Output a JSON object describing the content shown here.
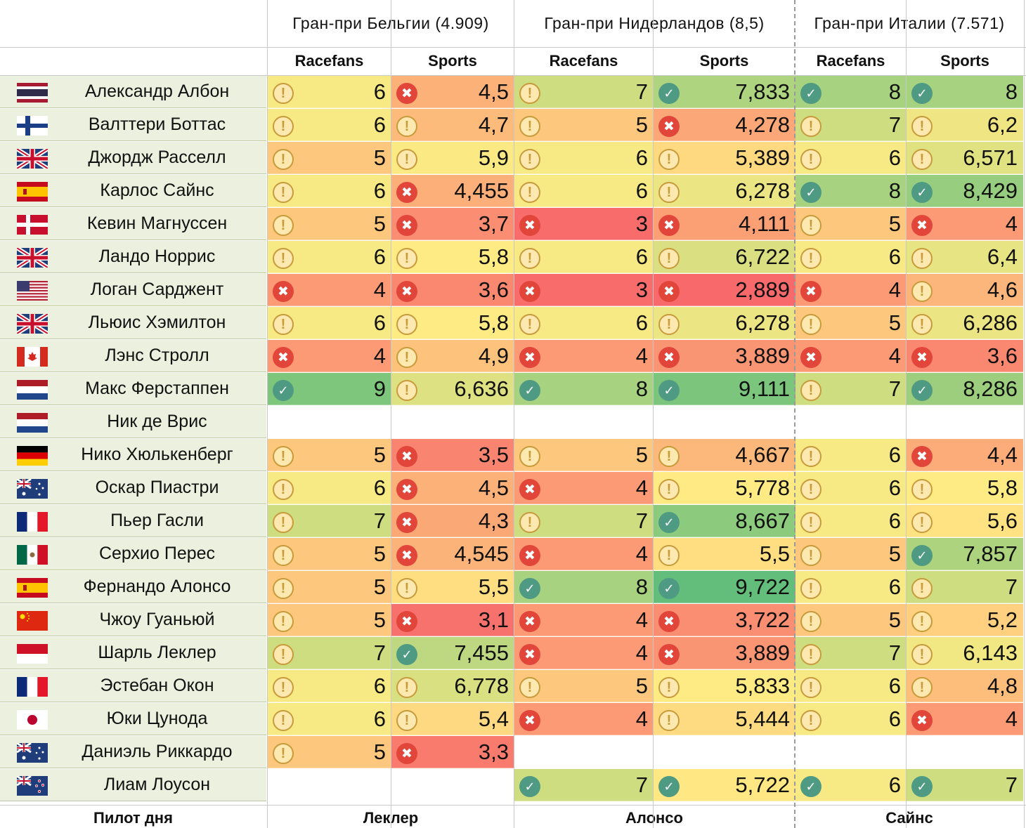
{
  "header": {
    "races": [
      {
        "title": "Гран-при Бельгии (4.909)",
        "title_plain": "Гран-при Бельгии (",
        "title_num": "4.909",
        "title_end": ")"
      },
      {
        "title": "Гран-при Нидерландов (8,5)",
        "title_plain": "Гран-при Нидерландов (",
        "title_num": "8,5",
        "title_end": ")"
      },
      {
        "title": "Гран-при Италии (7.571)",
        "title_plain": "Гран-при Италии (",
        "title_num": "7.571",
        "title_end": ")"
      }
    ],
    "sources": [
      "Racefans",
      "Sports",
      "Racefans",
      "Sports",
      "Racefans",
      "Sports"
    ]
  },
  "colors": {
    "name_bg": "#ebf1de",
    "scale_low": "#f8696b",
    "scale_mid": "#ffeb84",
    "scale_high": "#63be7b",
    "icon_good": "#4f9a83",
    "icon_bad": "#e2453a",
    "icon_warn": "#c79b3b"
  },
  "icons": {
    "good": "check-circle-icon",
    "warn": "exclamation-circle-icon",
    "bad": "x-circle-icon"
  },
  "drivers": [
    {
      "name": "Александр Албон",
      "flag": "thailand",
      "ratings": [
        {
          "v": "6",
          "s": "warn",
          "n": 6
        },
        {
          "v": "4,5",
          "s": "bad",
          "n": 4.5
        },
        {
          "v": "7",
          "s": "warn",
          "n": 7
        },
        {
          "v": "7,833",
          "s": "good",
          "n": 7.833
        },
        {
          "v": "8",
          "s": "good",
          "n": 8
        },
        {
          "v": "8",
          "s": "good",
          "n": 8
        }
      ]
    },
    {
      "name": "Валттери Боттас",
      "flag": "finland",
      "ratings": [
        {
          "v": "6",
          "s": "warn",
          "n": 6
        },
        {
          "v": "4,7",
          "s": "warn",
          "n": 4.7
        },
        {
          "v": "5",
          "s": "warn",
          "n": 5
        },
        {
          "v": "4,278",
          "s": "bad",
          "n": 4.278
        },
        {
          "v": "7",
          "s": "warn",
          "n": 7
        },
        {
          "v": "6,2",
          "s": "warn",
          "n": 6.2
        }
      ]
    },
    {
      "name": "Джордж Расселл",
      "flag": "uk",
      "ratings": [
        {
          "v": "5",
          "s": "warn",
          "n": 5
        },
        {
          "v": "5,9",
          "s": "warn",
          "n": 5.9
        },
        {
          "v": "6",
          "s": "warn",
          "n": 6
        },
        {
          "v": "5,389",
          "s": "warn",
          "n": 5.389
        },
        {
          "v": "6",
          "s": "warn",
          "n": 6
        },
        {
          "v": "6,571",
          "s": "warn",
          "n": 6.571
        }
      ]
    },
    {
      "name": "Карлос Сайнс",
      "flag": "spain",
      "ratings": [
        {
          "v": "6",
          "s": "warn",
          "n": 6
        },
        {
          "v": "4,455",
          "s": "bad",
          "n": 4.455
        },
        {
          "v": "6",
          "s": "warn",
          "n": 6
        },
        {
          "v": "6,278",
          "s": "warn",
          "n": 6.278
        },
        {
          "v": "8",
          "s": "good",
          "n": 8
        },
        {
          "v": "8,429",
          "s": "good",
          "n": 8.429
        }
      ]
    },
    {
      "name": "Кевин Магнуссен",
      "flag": "denmark",
      "ratings": [
        {
          "v": "5",
          "s": "warn",
          "n": 5
        },
        {
          "v": "3,7",
          "s": "bad",
          "n": 3.7
        },
        {
          "v": "3",
          "s": "bad",
          "n": 3
        },
        {
          "v": "4,111",
          "s": "bad",
          "n": 4.111
        },
        {
          "v": "5",
          "s": "warn",
          "n": 5
        },
        {
          "v": "4",
          "s": "bad",
          "n": 4
        }
      ]
    },
    {
      "name": "Ландо Норрис",
      "flag": "uk",
      "ratings": [
        {
          "v": "6",
          "s": "warn",
          "n": 6
        },
        {
          "v": "5,8",
          "s": "warn",
          "n": 5.8
        },
        {
          "v": "6",
          "s": "warn",
          "n": 6
        },
        {
          "v": "6,722",
          "s": "warn",
          "n": 6.722
        },
        {
          "v": "6",
          "s": "warn",
          "n": 6
        },
        {
          "v": "6,4",
          "s": "warn",
          "n": 6.4
        }
      ]
    },
    {
      "name": "Логан Сарджент",
      "flag": "usa",
      "ratings": [
        {
          "v": "4",
          "s": "bad",
          "n": 4
        },
        {
          "v": "3,6",
          "s": "bad",
          "n": 3.6
        },
        {
          "v": "3",
          "s": "bad",
          "n": 3
        },
        {
          "v": "2,889",
          "s": "bad",
          "n": 2.889
        },
        {
          "v": "4",
          "s": "bad",
          "n": 4
        },
        {
          "v": "4,6",
          "s": "warn",
          "n": 4.6
        }
      ]
    },
    {
      "name": "Льюис Хэмилтон",
      "flag": "uk",
      "ratings": [
        {
          "v": "6",
          "s": "warn",
          "n": 6
        },
        {
          "v": "5,8",
          "s": "warn",
          "n": 5.8
        },
        {
          "v": "6",
          "s": "warn",
          "n": 6
        },
        {
          "v": "6,278",
          "s": "warn",
          "n": 6.278
        },
        {
          "v": "5",
          "s": "warn",
          "n": 5
        },
        {
          "v": "6,286",
          "s": "warn",
          "n": 6.286
        }
      ]
    },
    {
      "name": "Лэнс Стролл",
      "flag": "canada",
      "ratings": [
        {
          "v": "4",
          "s": "bad",
          "n": 4
        },
        {
          "v": "4,9",
          "s": "warn",
          "n": 4.9
        },
        {
          "v": "4",
          "s": "bad",
          "n": 4
        },
        {
          "v": "3,889",
          "s": "bad",
          "n": 3.889
        },
        {
          "v": "4",
          "s": "bad",
          "n": 4
        },
        {
          "v": "3,6",
          "s": "bad",
          "n": 3.6
        }
      ]
    },
    {
      "name": "Макс Ферстаппен",
      "flag": "netherlands",
      "ratings": [
        {
          "v": "9",
          "s": "good",
          "n": 9
        },
        {
          "v": "6,636",
          "s": "warn",
          "n": 6.636
        },
        {
          "v": "8",
          "s": "good",
          "n": 8
        },
        {
          "v": "9,111",
          "s": "good",
          "n": 9.111
        },
        {
          "v": "7",
          "s": "warn",
          "n": 7
        },
        {
          "v": "8,286",
          "s": "good",
          "n": 8.286
        }
      ]
    },
    {
      "name": "Ник де Врис",
      "flag": "netherlands",
      "ratings": [
        null,
        null,
        null,
        null,
        null,
        null
      ]
    },
    {
      "name": "Нико Хюлькенберг",
      "flag": "germany",
      "ratings": [
        {
          "v": "5",
          "s": "warn",
          "n": 5
        },
        {
          "v": "3,5",
          "s": "bad",
          "n": 3.5
        },
        {
          "v": "5",
          "s": "warn",
          "n": 5
        },
        {
          "v": "4,667",
          "s": "warn",
          "n": 4.667
        },
        {
          "v": "6",
          "s": "warn",
          "n": 6
        },
        {
          "v": "4,4",
          "s": "bad",
          "n": 4.4
        }
      ]
    },
    {
      "name": "Оскар Пиастри",
      "flag": "australia",
      "ratings": [
        {
          "v": "6",
          "s": "warn",
          "n": 6
        },
        {
          "v": "4,5",
          "s": "bad",
          "n": 4.5
        },
        {
          "v": "4",
          "s": "bad",
          "n": 4
        },
        {
          "v": "5,778",
          "s": "warn",
          "n": 5.778
        },
        {
          "v": "6",
          "s": "warn",
          "n": 6
        },
        {
          "v": "5,8",
          "s": "warn",
          "n": 5.8
        }
      ]
    },
    {
      "name": "Пьер Гасли",
      "flag": "france",
      "ratings": [
        {
          "v": "7",
          "s": "warn",
          "n": 7
        },
        {
          "v": "4,3",
          "s": "bad",
          "n": 4.3
        },
        {
          "v": "7",
          "s": "warn",
          "n": 7
        },
        {
          "v": "8,667",
          "s": "good",
          "n": 8.667
        },
        {
          "v": "6",
          "s": "warn",
          "n": 6
        },
        {
          "v": "5,6",
          "s": "warn",
          "n": 5.6
        }
      ]
    },
    {
      "name": "Серхио Перес",
      "flag": "mexico",
      "ratings": [
        {
          "v": "5",
          "s": "warn",
          "n": 5
        },
        {
          "v": "4,545",
          "s": "bad",
          "n": 4.545
        },
        {
          "v": "4",
          "s": "bad",
          "n": 4
        },
        {
          "v": "5,5",
          "s": "warn",
          "n": 5.5
        },
        {
          "v": "5",
          "s": "warn",
          "n": 5
        },
        {
          "v": "7,857",
          "s": "good",
          "n": 7.857
        }
      ]
    },
    {
      "name": "Фернандо Алонсо",
      "flag": "spain",
      "ratings": [
        {
          "v": "5",
          "s": "warn",
          "n": 5
        },
        {
          "v": "5,5",
          "s": "warn",
          "n": 5.5
        },
        {
          "v": "8",
          "s": "good",
          "n": 8
        },
        {
          "v": "9,722",
          "s": "good",
          "n": 9.722
        },
        {
          "v": "6",
          "s": "warn",
          "n": 6
        },
        {
          "v": "7",
          "s": "warn",
          "n": 7
        }
      ]
    },
    {
      "name": "Чжоу Гуаньюй",
      "flag": "china",
      "ratings": [
        {
          "v": "5",
          "s": "warn",
          "n": 5
        },
        {
          "v": "3,1",
          "s": "bad",
          "n": 3.1
        },
        {
          "v": "4",
          "s": "bad",
          "n": 4
        },
        {
          "v": "3,722",
          "s": "bad",
          "n": 3.722
        },
        {
          "v": "5",
          "s": "warn",
          "n": 5
        },
        {
          "v": "5,2",
          "s": "warn",
          "n": 5.2
        }
      ]
    },
    {
      "name": "Шарль Леклер",
      "flag": "monaco",
      "ratings": [
        {
          "v": "7",
          "s": "warn",
          "n": 7
        },
        {
          "v": "7,455",
          "s": "good",
          "n": 7.455
        },
        {
          "v": "4",
          "s": "bad",
          "n": 4
        },
        {
          "v": "3,889",
          "s": "bad",
          "n": 3.889
        },
        {
          "v": "7",
          "s": "warn",
          "n": 7
        },
        {
          "v": "6,143",
          "s": "warn",
          "n": 6.143
        }
      ]
    },
    {
      "name": "Эстебан Окон",
      "flag": "france",
      "ratings": [
        {
          "v": "6",
          "s": "warn",
          "n": 6
        },
        {
          "v": "6,778",
          "s": "warn",
          "n": 6.778
        },
        {
          "v": "5",
          "s": "warn",
          "n": 5
        },
        {
          "v": "5,833",
          "s": "warn",
          "n": 5.833
        },
        {
          "v": "6",
          "s": "warn",
          "n": 6
        },
        {
          "v": "4,8",
          "s": "warn",
          "n": 4.8
        }
      ]
    },
    {
      "name": "Юки Цунода",
      "flag": "japan",
      "ratings": [
        {
          "v": "6",
          "s": "warn",
          "n": 6
        },
        {
          "v": "5,4",
          "s": "warn",
          "n": 5.4
        },
        {
          "v": "4",
          "s": "bad",
          "n": 4
        },
        {
          "v": "5,444",
          "s": "warn",
          "n": 5.444
        },
        {
          "v": "6",
          "s": "warn",
          "n": 6
        },
        {
          "v": "4",
          "s": "bad",
          "n": 4
        }
      ]
    },
    {
      "name": "Даниэль Риккардо",
      "flag": "australia",
      "ratings": [
        {
          "v": "5",
          "s": "warn",
          "n": 5
        },
        {
          "v": "3,3",
          "s": "bad",
          "n": 3.3
        },
        null,
        null,
        null,
        null
      ]
    },
    {
      "name": "Лиам Лоусон",
      "flag": "newzealand",
      "ratings": [
        null,
        null,
        {
          "v": "7",
          "s": "good",
          "n": 7
        },
        {
          "v": "5,722",
          "s": "good",
          "n": 5.722
        },
        {
          "v": "6",
          "s": "good",
          "n": 6
        },
        {
          "v": "7",
          "s": "good",
          "n": 7
        }
      ]
    }
  ],
  "footer": {
    "label": "Пилот дня",
    "winners": [
      "Леклер",
      "Алонсо",
      "Сайнс"
    ]
  }
}
